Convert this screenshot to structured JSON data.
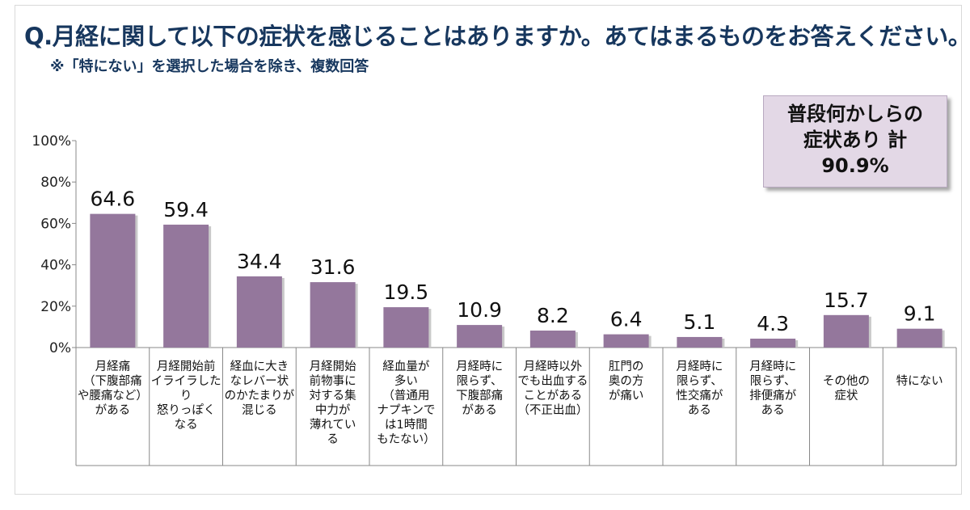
{
  "title": "Q.月経に関して以下の症状を感じることはありますか。あてはまるものをお答えください。",
  "subtitle": "※「特にない」を選択した場合を除き、複数回答",
  "summary": {
    "line1": "普段何かしらの",
    "line2": "症状あり 計",
    "line3": "90.9%"
  },
  "chart_data": {
    "type": "bar",
    "categories": [
      "月経痛\n（下腹部痛\nや腰痛など）\nがある",
      "月経開始前\nイライラしたり\n怒りっぽく\nなる",
      "経血に大き\nなレバー状\nのかたまりが\n混じる",
      "月経開始\n前物事に\n対する集\n中力が\n薄れてい\nる",
      "経血量が\n多い\n（普通用\nナプキンで\nは1時間\nもたない）",
      "月経時に\n限らず、\n下腹部痛\nがある",
      "月経時以外\nでも出血する\nことがある\n（不正出血）",
      "肛門の\n奥の方\nが痛い",
      "月経時に\n限らず、\n性交痛が\nある",
      "月経時に\n限らず、\n排便痛が\nある",
      "その他の\n症状",
      "特にない"
    ],
    "values": [
      64.6,
      59.4,
      34.4,
      31.6,
      19.5,
      10.9,
      8.2,
      6.4,
      5.1,
      4.3,
      15.7,
      9.1
    ],
    "value_labels": [
      "64.6",
      "59.4",
      "34.4",
      "31.6",
      "19.5",
      "10.9",
      "8.2",
      "6.4",
      "5.1",
      "4.3",
      "15.7",
      "9.1"
    ],
    "yticks": [
      "0%",
      "20%",
      "40%",
      "60%",
      "80%",
      "100%"
    ],
    "ylim": [
      0,
      100
    ],
    "bar_color": "#94779c",
    "grid": false
  }
}
